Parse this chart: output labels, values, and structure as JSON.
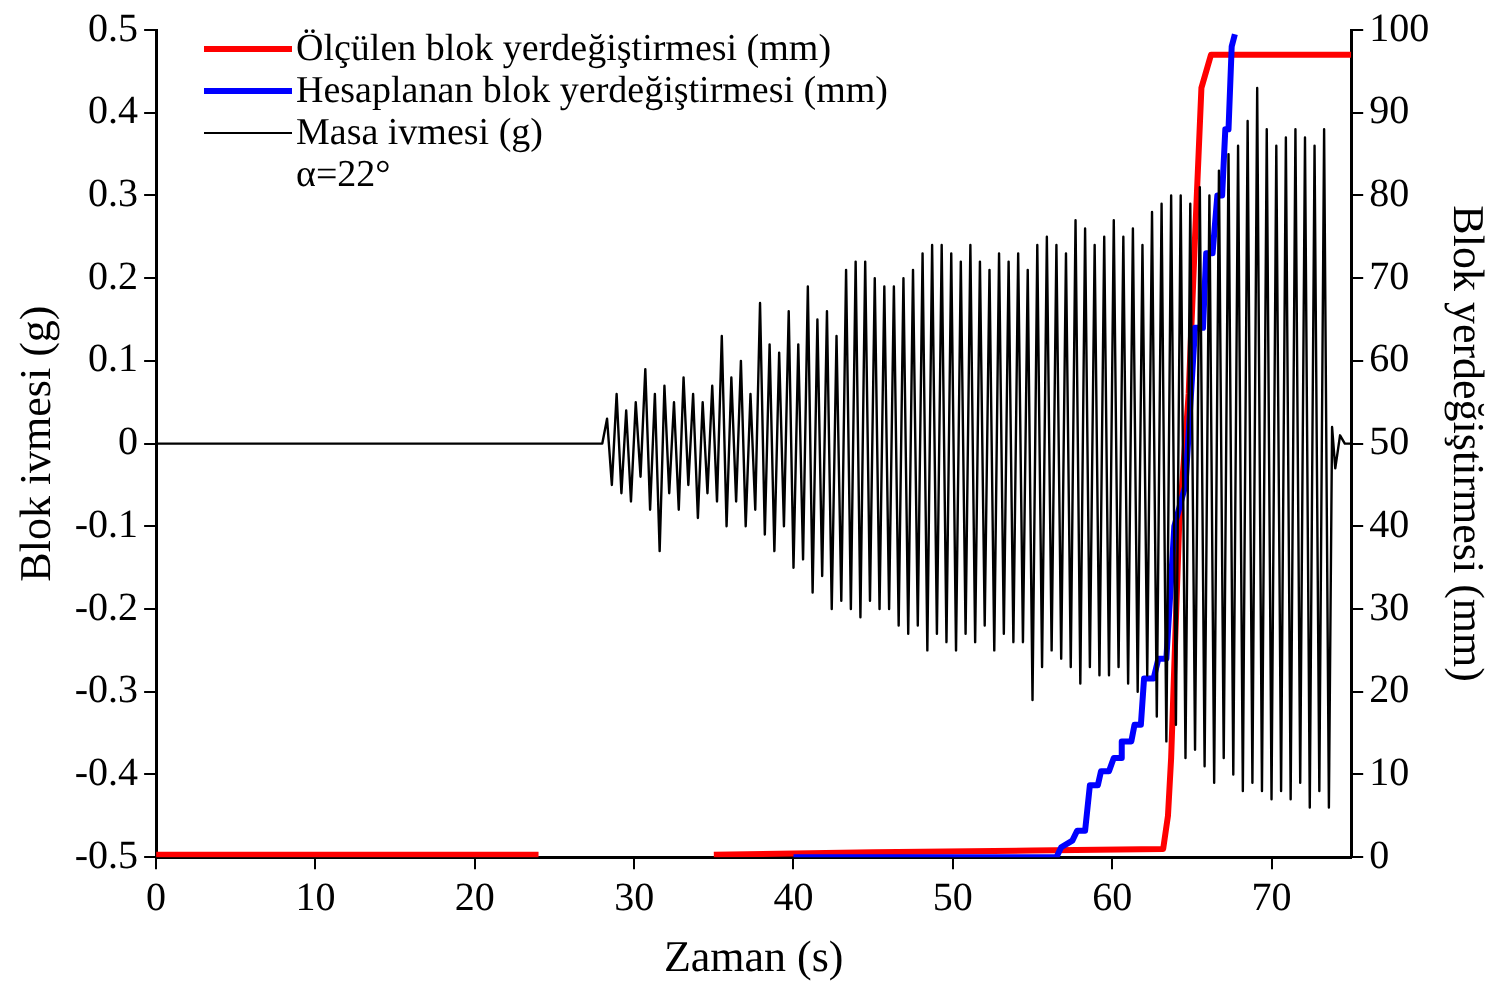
{
  "chart_data": {
    "type": "line",
    "xlabel": "Zaman (s)",
    "ylabel": "Blok ivmesi (g)",
    "y2label": "Blok yerdeğiştirmesi (mm)",
    "xlim": [
      0,
      75
    ],
    "xticks": [
      0,
      10,
      20,
      30,
      40,
      50,
      60,
      70
    ],
    "ylim": [
      -0.5,
      0.5
    ],
    "yticks": [
      -0.5,
      -0.4,
      -0.3,
      -0.2,
      -0.1,
      0,
      0.1,
      0.2,
      0.3,
      0.4,
      0.5
    ],
    "y2lim": [
      0,
      100
    ],
    "y2ticks": [
      0,
      10,
      20,
      30,
      40,
      50,
      60,
      70,
      80,
      90,
      100
    ],
    "grid": false,
    "legend": "top left",
    "marker": "none",
    "line_style": "solid",
    "annotations": [
      "α=22°"
    ],
    "series": [
      {
        "name": "Ölçülen blok yerdeğiştirmesi (mm)",
        "color": "#ff0000",
        "axis": "y2",
        "x": [
          0,
          24,
          30,
          35,
          45,
          55,
          63.2,
          63.5,
          63.7,
          64.2,
          64.8,
          65.2,
          65.6,
          66.2,
          75
        ],
        "values": [
          0.3,
          0.3,
          null,
          0.3,
          0.6,
          0.8,
          1,
          5,
          12,
          40,
          56,
          75,
          93,
          97,
          97
        ]
      },
      {
        "name": "Hesaplanan blok yerdeğiştirmesi (mm)",
        "color": "#0000ff",
        "axis": "y2",
        "x": [
          40,
          56.5,
          56.8,
          57.5,
          57.8,
          58.3,
          58.6,
          59.1,
          59.3,
          59.8,
          60.1,
          60.5,
          60.6,
          61.2,
          61.4,
          61.8,
          62.0,
          62.6,
          62.9,
          63.4,
          63.9,
          64.6,
          65.2,
          65.7,
          65.9,
          66.3,
          66.6,
          66.9,
          67.1,
          67.3,
          67.5,
          67.7
        ],
        "values": [
          0,
          0,
          1.2,
          2,
          3.2,
          3.2,
          8.7,
          8.7,
          10.4,
          10.4,
          12,
          12,
          14,
          14,
          16,
          16,
          21.6,
          21.6,
          24,
          24,
          40,
          45,
          64,
          64,
          73,
          73,
          80,
          80,
          88,
          88,
          98,
          99.5
        ]
      },
      {
        "name": "Masa ivmesi (g)",
        "color": "#000000",
        "axis": "y",
        "x": [
          0,
          28.0,
          28.3,
          28.6,
          28.9,
          29.2,
          29.5,
          29.8,
          30.1,
          30.4,
          30.7,
          31.0,
          31.3,
          31.6,
          31.9,
          32.2,
          32.5,
          32.8,
          33.1,
          33.4,
          33.7,
          34.0,
          34.3,
          34.6,
          34.9,
          35.2,
          35.5,
          35.8,
          36.1,
          36.4,
          36.7,
          37.0,
          37.3,
          37.6,
          37.9,
          38.2,
          38.5,
          38.8,
          39.1,
          39.4,
          39.7,
          40.0,
          40.3,
          40.6,
          40.9,
          41.2,
          41.5,
          41.8,
          42.1,
          42.4,
          42.7,
          43.0,
          43.3,
          43.6,
          43.9,
          44.2,
          44.5,
          44.8,
          45.1,
          45.4,
          45.7,
          46.0,
          46.3,
          46.6,
          46.9,
          47.2,
          47.5,
          47.8,
          48.1,
          48.4,
          48.7,
          49.0,
          49.3,
          49.6,
          49.9,
          50.2,
          50.5,
          50.8,
          51.1,
          51.4,
          51.7,
          52.0,
          52.3,
          52.6,
          52.9,
          53.2,
          53.5,
          53.8,
          54.1,
          54.4,
          54.7,
          55.0,
          55.3,
          55.6,
          55.9,
          56.2,
          56.5,
          56.8,
          57.1,
          57.4,
          57.7,
          58.0,
          58.3,
          58.6,
          58.9,
          59.2,
          59.5,
          59.8,
          60.1,
          60.4,
          60.7,
          61.0,
          61.3,
          61.6,
          61.9,
          62.2,
          62.5,
          62.8,
          63.1,
          63.4,
          63.7,
          64.0,
          64.3,
          64.6,
          64.9,
          65.2,
          65.5,
          65.8,
          66.1,
          66.4,
          66.7,
          67.0,
          67.3,
          67.6,
          67.9,
          68.2,
          68.5,
          68.8,
          69.1,
          69.4,
          69.7,
          70.0,
          70.3,
          70.6,
          70.9,
          71.2,
          71.5,
          71.8,
          72.1,
          72.4,
          72.7,
          73.0,
          73.3,
          73.6,
          73.8,
          74.0,
          74.3,
          74.6,
          75
        ],
        "values": [
          0,
          0,
          0.03,
          -0.05,
          0.06,
          -0.06,
          0.04,
          -0.07,
          0.05,
          -0.04,
          0.09,
          -0.08,
          0.06,
          -0.13,
          0.07,
          -0.06,
          0.05,
          -0.08,
          0.08,
          -0.05,
          0.06,
          -0.09,
          0.05,
          -0.06,
          0.07,
          -0.07,
          0.13,
          -0.1,
          0.08,
          -0.07,
          0.1,
          -0.1,
          0.06,
          -0.08,
          0.17,
          -0.11,
          0.12,
          -0.13,
          0.11,
          -0.1,
          0.16,
          -0.15,
          0.12,
          -0.14,
          0.19,
          -0.18,
          0.15,
          -0.16,
          0.16,
          -0.2,
          0.13,
          -0.19,
          0.21,
          -0.2,
          0.22,
          -0.21,
          0.22,
          -0.19,
          0.2,
          -0.2,
          0.19,
          -0.2,
          0.19,
          -0.22,
          0.2,
          -0.23,
          0.21,
          -0.22,
          0.23,
          -0.25,
          0.24,
          -0.23,
          0.24,
          -0.24,
          0.23,
          -0.25,
          0.22,
          -0.23,
          0.24,
          -0.24,
          0.22,
          -0.22,
          0.21,
          -0.25,
          0.23,
          -0.23,
          0.22,
          -0.24,
          0.23,
          -0.24,
          0.21,
          -0.31,
          0.24,
          -0.27,
          0.25,
          -0.25,
          0.24,
          -0.26,
          0.23,
          -0.27,
          0.27,
          -0.29,
          0.26,
          -0.27,
          0.24,
          -0.28,
          0.25,
          -0.28,
          0.27,
          -0.27,
          0.25,
          -0.29,
          0.26,
          -0.3,
          0.24,
          -0.28,
          0.28,
          -0.33,
          0.29,
          -0.36,
          0.3,
          -0.34,
          0.3,
          -0.38,
          0.29,
          -0.37,
          0.31,
          -0.39,
          0.3,
          -0.41,
          0.33,
          -0.38,
          0.35,
          -0.4,
          0.36,
          -0.42,
          0.39,
          -0.41,
          0.43,
          -0.42,
          0.38,
          -0.43,
          0.36,
          -0.42,
          0.37,
          -0.43,
          0.38,
          -0.41,
          0.37,
          -0.44,
          0.36,
          -0.42,
          0.38,
          -0.44,
          0.02,
          -0.03,
          0.01,
          0,
          0
        ]
      }
    ]
  }
}
